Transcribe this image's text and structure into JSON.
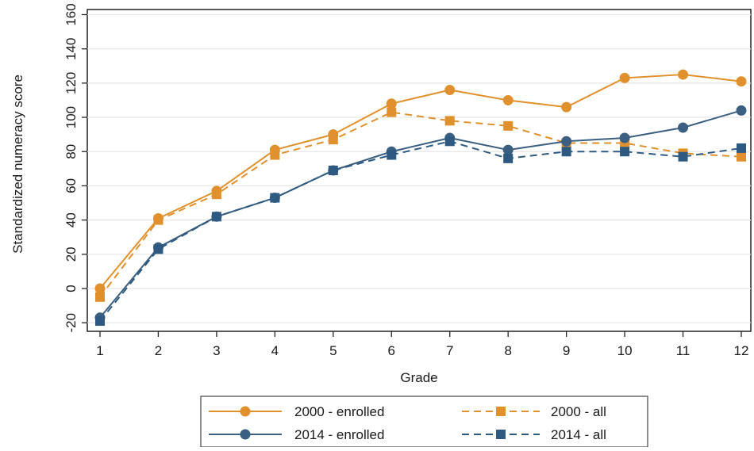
{
  "chart_data": {
    "type": "line",
    "title": "",
    "xlabel": "Grade",
    "ylabel": "Standardized numeracy score",
    "x": [
      1,
      2,
      3,
      4,
      5,
      6,
      7,
      8,
      9,
      10,
      11,
      12
    ],
    "xlim": [
      1,
      12
    ],
    "ylim": [
      -25,
      163
    ],
    "yticks": [
      -20,
      0,
      20,
      40,
      60,
      80,
      100,
      120,
      140,
      160
    ],
    "xticks": [
      1,
      2,
      3,
      4,
      5,
      6,
      7,
      8,
      9,
      10,
      11,
      12
    ],
    "grid": "horizontal",
    "legend_position": "bottom",
    "series": [
      {
        "name": "2000 - enrolled",
        "color": "#E0902C",
        "marker": "circle",
        "dash": "solid",
        "values": [
          0,
          41,
          57,
          81,
          90,
          108,
          116,
          110,
          106,
          123,
          125,
          121
        ]
      },
      {
        "name": "2000 - all",
        "color": "#E0902C",
        "marker": "square",
        "dash": "dashed",
        "values": [
          -5,
          40,
          55,
          78,
          87,
          103,
          98,
          95,
          85,
          85,
          79,
          77
        ]
      },
      {
        "name": "2014 - enrolled",
        "color": "#3B5F80",
        "marker": "circle",
        "dash": "solid",
        "values": [
          -17,
          24,
          42,
          53,
          69,
          80,
          88,
          81,
          86,
          88,
          94,
          104
        ]
      },
      {
        "name": "2014 - all",
        "color": "#2E5A82",
        "marker": "square",
        "dash": "dashed",
        "values": [
          -19,
          23,
          42,
          53,
          69,
          78,
          86,
          76,
          80,
          80,
          77,
          82
        ]
      }
    ]
  }
}
